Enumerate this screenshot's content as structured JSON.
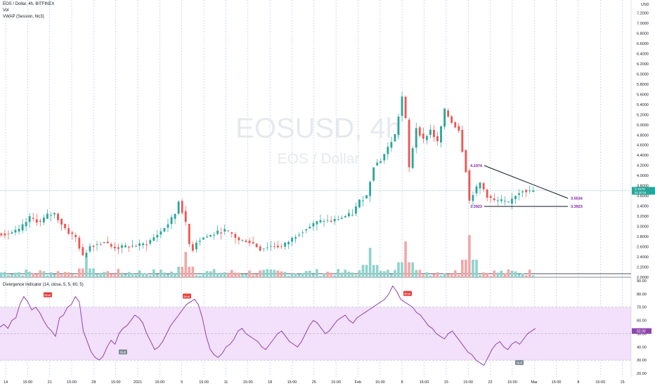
{
  "legend": {
    "symbol": "EOS / Dollar, 4h, BITFINEX",
    "vol": "Vol",
    "vwap": "VWAP (Session, hlc3)",
    "indicator": "Divergence Indicator (14, close, 5, 5, 60, 5)"
  },
  "watermark": {
    "ticker": "EOSUSD, 4h",
    "name": "EOS / Dollar"
  },
  "currency": "USD",
  "colors": {
    "up": "#26a69a",
    "down": "#ef5350",
    "vol_up": "#8fd3cc",
    "vol_down": "#f4a6a6",
    "osc": "#8e44ad",
    "band": "#f3e0fb",
    "annot": "#7b1fa2",
    "bear": "#e53935",
    "bull": "#7e8a94",
    "grid": "#a9c6e6"
  },
  "chart_data": {
    "type": "candlestick",
    "price_axis": {
      "min": 2.0,
      "max": 7.4,
      "step": 0.2,
      "labels": [
        "7.4000",
        "7.2000",
        "7.0000",
        "6.8000",
        "6.6000",
        "6.4000",
        "6.2000",
        "6.0000",
        "5.8000",
        "5.6000",
        "5.4000",
        "5.2000",
        "5.0000",
        "4.8000",
        "4.6000",
        "4.4000",
        "4.2000",
        "4.0000",
        "3.8000",
        "3.6000",
        "3.4000",
        "3.2000",
        "3.0000",
        "2.8000",
        "2.6000",
        "2.4000",
        "2.2000",
        "2.0000"
      ]
    },
    "last_price": {
      "value": 3.707,
      "label": "3.7070",
      "sub": "02:10:16"
    },
    "time_axis": [
      "14",
      "15:00",
      "21",
      "15:00",
      "28",
      "15:00",
      "2021",
      "15:00",
      "5",
      "15:00",
      "11",
      "15:00",
      "18",
      "15:00",
      "25",
      "15:00",
      "Feb",
      "15:00",
      "8",
      "15:00",
      "15",
      "15:00",
      "22",
      "15:00",
      "Mar",
      "15:00",
      "8",
      "15:00",
      "15"
    ],
    "close_path": [
      [
        0,
        2.86
      ],
      [
        3,
        2.86
      ],
      [
        6,
        2.92
      ],
      [
        9,
        3.17
      ],
      [
        12,
        3.08
      ],
      [
        14,
        3.22
      ],
      [
        16,
        3.25
      ],
      [
        18,
        3.05
      ],
      [
        20,
        2.88
      ],
      [
        22,
        2.78
      ],
      [
        24,
        2.4
      ],
      [
        26,
        2.62
      ],
      [
        28,
        2.65
      ],
      [
        30,
        2.7
      ],
      [
        32,
        2.6
      ],
      [
        34,
        2.58
      ],
      [
        36,
        2.6
      ],
      [
        39,
        2.62
      ],
      [
        42,
        2.66
      ],
      [
        44,
        2.78
      ],
      [
        46,
        2.9
      ],
      [
        48,
        3.05
      ],
      [
        50,
        3.25
      ],
      [
        51,
        3.5
      ],
      [
        52,
        3.3
      ],
      [
        53,
        3.05
      ],
      [
        54,
        2.65
      ],
      [
        55,
        2.55
      ],
      [
        56,
        2.7
      ],
      [
        58,
        2.78
      ],
      [
        60,
        2.82
      ],
      [
        62,
        2.88
      ],
      [
        64,
        2.92
      ],
      [
        66,
        2.85
      ],
      [
        68,
        2.72
      ],
      [
        70,
        2.72
      ],
      [
        72,
        2.66
      ],
      [
        74,
        2.55
      ],
      [
        76,
        2.6
      ],
      [
        78,
        2.62
      ],
      [
        80,
        2.6
      ],
      [
        82,
        2.7
      ],
      [
        84,
        2.82
      ],
      [
        86,
        2.92
      ],
      [
        88,
        3.0
      ],
      [
        90,
        3.08
      ],
      [
        92,
        3.12
      ],
      [
        94,
        3.1
      ],
      [
        96,
        3.15
      ],
      [
        98,
        3.2
      ],
      [
        100,
        3.25
      ],
      [
        102,
        3.5
      ],
      [
        104,
        3.6
      ],
      [
        106,
        4.2
      ],
      [
        108,
        4.3
      ],
      [
        110,
        4.55
      ],
      [
        112,
        4.8
      ],
      [
        114,
        5.55
      ],
      [
        115,
        5.1
      ],
      [
        116,
        4.15
      ],
      [
        118,
        4.95
      ],
      [
        120,
        4.7
      ],
      [
        122,
        4.9
      ],
      [
        124,
        4.65
      ],
      [
        126,
        5.28
      ],
      [
        128,
        5.05
      ],
      [
        130,
        4.9
      ],
      [
        132,
        4.1
      ],
      [
        133,
        3.5
      ],
      [
        134,
        3.65
      ],
      [
        136,
        3.85
      ],
      [
        138,
        3.6
      ],
      [
        140,
        3.5
      ],
      [
        142,
        3.5
      ],
      [
        144,
        3.45
      ],
      [
        146,
        3.62
      ],
      [
        148,
        3.72
      ],
      [
        150,
        3.68
      ],
      [
        151,
        3.7
      ]
    ],
    "volume_bars": 151,
    "volume_spikes": [
      [
        24,
        0.5,
        "down"
      ],
      [
        52,
        0.6,
        "up"
      ],
      [
        104,
        0.7,
        "down"
      ],
      [
        114,
        0.85,
        "up"
      ],
      [
        132,
        1.0,
        "down"
      ]
    ],
    "oscillator": {
      "min": 20,
      "max": 90,
      "labels": [
        "90.00",
        "80.00",
        "70.00",
        "60.00",
        "50.00",
        "40.00",
        "30.00",
        "20.00"
      ],
      "upper": 70,
      "lower": 30,
      "mid": 50,
      "values": [
        55,
        57,
        54,
        60,
        62,
        72,
        78,
        74,
        68,
        70,
        66,
        60,
        55,
        52,
        48,
        62,
        64,
        70,
        72,
        78,
        74,
        52,
        44,
        36,
        32,
        30,
        33,
        40,
        45,
        42,
        50,
        54,
        56,
        60,
        64,
        62,
        58,
        50,
        44,
        38,
        40,
        44,
        50,
        56,
        60,
        64,
        68,
        72,
        74,
        76,
        72,
        62,
        48,
        38,
        34,
        32,
        35,
        40,
        42,
        46,
        52,
        54,
        50,
        48,
        46,
        44,
        40,
        38,
        42,
        46,
        50,
        52,
        48,
        44,
        42,
        40,
        44,
        50,
        56,
        60,
        58,
        54,
        50,
        52,
        56,
        60,
        62,
        64,
        60,
        58,
        62,
        64,
        66,
        68,
        70,
        72,
        74,
        76,
        80,
        86,
        82,
        76,
        74,
        72,
        70,
        66,
        64,
        60,
        56,
        54,
        50,
        48,
        46,
        50,
        52,
        48,
        44,
        40,
        36,
        34,
        30,
        28,
        26,
        32,
        38,
        42,
        44,
        40,
        38,
        42,
        44,
        42,
        46,
        50,
        52,
        54
      ]
    },
    "annotations": {
      "triangle_top": "4.1974",
      "triangle_proj": "3.5534",
      "triangle_support": "3.3923",
      "triangle_support_right": "3.3923"
    },
    "signals": [
      "Bear",
      "Bear",
      "Bear",
      "Bull",
      "Bull"
    ]
  }
}
